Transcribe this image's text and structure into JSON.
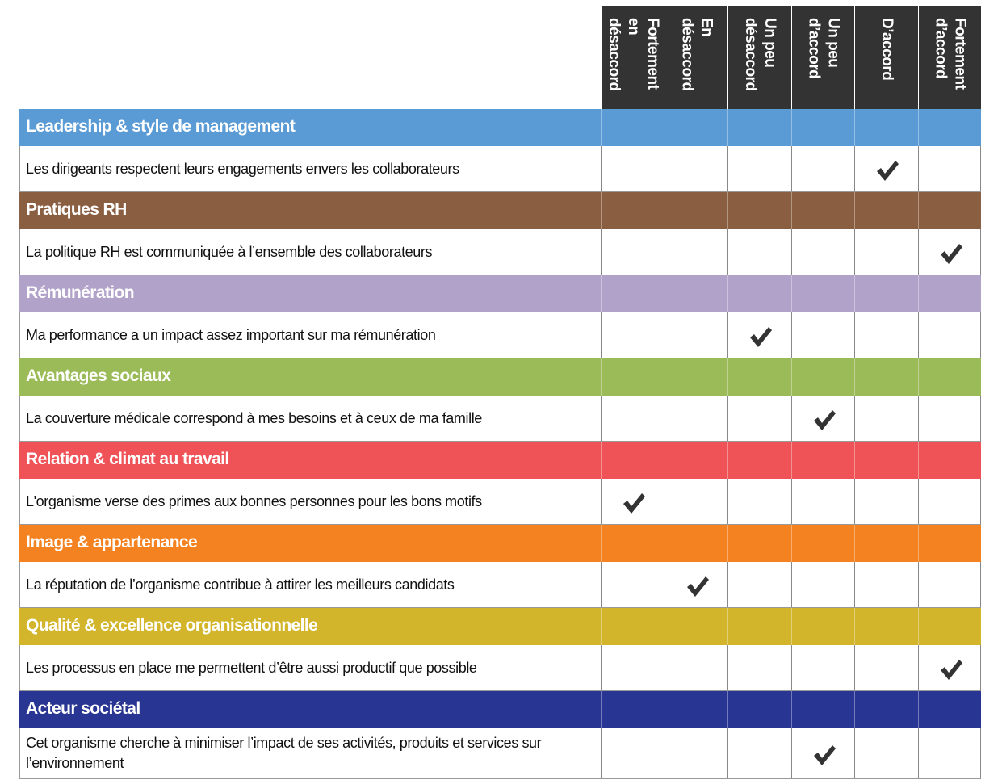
{
  "columns": [
    [
      "Fortement",
      "en désaccord"
    ],
    [
      "En désaccord"
    ],
    [
      "Un peu",
      "désaccord"
    ],
    [
      "Un peu",
      "d’accord"
    ],
    [
      "D’accord"
    ],
    [
      "Fortement",
      "d’accord"
    ]
  ],
  "sections": [
    {
      "title": "Leadership & style de management",
      "color": "#5b9bd5",
      "statement": "Les dirigeants respectent leurs engagements envers les collaborateurs",
      "checked_column": 4
    },
    {
      "title": "Pratiques RH",
      "color": "#8a5e40",
      "statement": "La politique RH est communiquée à l’ensemble des collaborateurs",
      "checked_column": 5
    },
    {
      "title": "Rémunération",
      "color": "#b1a2c9",
      "statement": "Ma performance a un impact assez important sur ma rémunération",
      "checked_column": 2
    },
    {
      "title": "Avantages sociaux",
      "color": "#9bbb59",
      "statement": "La couverture médicale correspond à mes besoins et à ceux de ma famille",
      "checked_column": 3
    },
    {
      "title": "Relation & climat au travail",
      "color": "#ef5358",
      "statement": "L'organisme verse des primes aux bonnes personnes pour les bons motifs",
      "checked_column": 0
    },
    {
      "title": "Image & appartenance",
      "color": "#f58220",
      "statement": "La réputation de l’organisme contribue à attirer les meilleurs candidats",
      "checked_column": 1
    },
    {
      "title": "Qualité & excellence organisationnelle",
      "color": "#d2b52b",
      "statement": "Les processus en place me permettent d’être aussi productif que possible",
      "checked_column": 5
    },
    {
      "title": "Acteur sociétal",
      "color": "#283593",
      "statement": "Cet organisme cherche à minimiser l’impact de ses activités, produits et services sur l’environnement",
      "checked_column": 3
    }
  ]
}
